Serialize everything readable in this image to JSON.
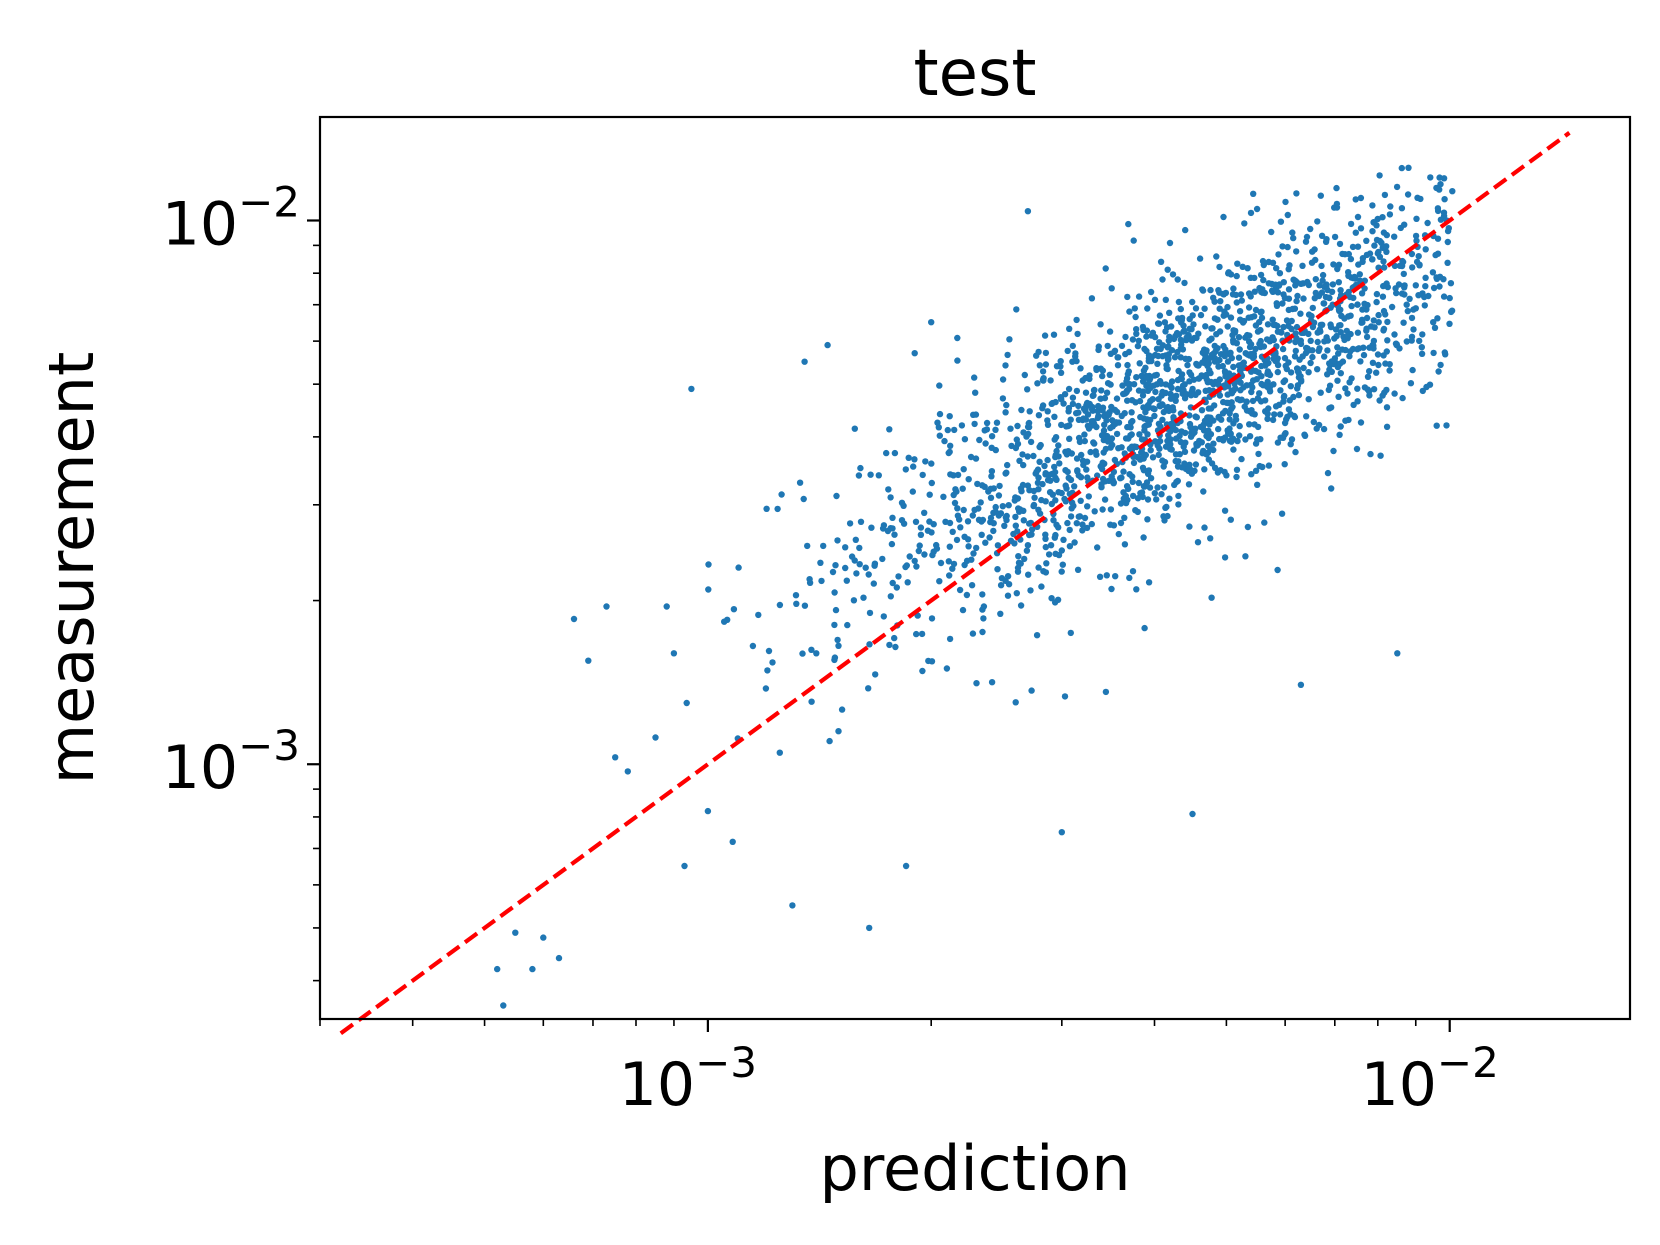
{
  "chart_data": {
    "type": "scatter",
    "title": "test",
    "xlabel": "prediction",
    "ylabel": "measurement",
    "x_scale": "log",
    "y_scale": "log",
    "xlim": [
      0.0003,
      0.0175
    ],
    "ylim": [
      0.00034,
      0.0155
    ],
    "grid": false,
    "legend": "none",
    "x_ticks": [
      {
        "value": 0.001,
        "base": "10",
        "exp": "−3"
      },
      {
        "value": 0.01,
        "base": "10",
        "exp": "−2"
      }
    ],
    "y_ticks": [
      {
        "value": 0.001,
        "base": "10",
        "exp": "−3"
      },
      {
        "value": 0.01,
        "base": "10",
        "exp": "−2"
      }
    ],
    "series": [
      {
        "color": "#1f77b4",
        "marker": "dot",
        "n_points": 2000,
        "points_sample": [
          [
            0.00052,
            0.00042
          ],
          [
            0.00053,
            0.00036
          ],
          [
            0.00055,
            0.00049
          ],
          [
            0.00058,
            0.00042
          ],
          [
            0.0006,
            0.00048
          ],
          [
            0.00063,
            0.00044
          ],
          [
            0.00066,
            0.00185
          ],
          [
            0.00069,
            0.00155
          ],
          [
            0.00073,
            0.00195
          ],
          [
            0.00075,
            0.00103
          ],
          [
            0.00078,
            0.00097
          ],
          [
            0.00085,
            0.00112
          ],
          [
            0.00088,
            0.00195
          ],
          [
            0.0009,
            0.0016
          ],
          [
            0.00093,
            0.00065
          ],
          [
            0.00095,
            0.0049
          ],
          [
            0.001,
            0.00082
          ],
          [
            0.00108,
            0.00072
          ],
          [
            0.0011,
            0.0023
          ],
          [
            0.00115,
            0.00165
          ],
          [
            0.0012,
            0.00295
          ],
          [
            0.00125,
            0.00105
          ],
          [
            0.0013,
            0.00055
          ],
          [
            0.00135,
            0.0055
          ],
          [
            0.0014,
            0.0016
          ],
          [
            0.00145,
            0.0059
          ],
          [
            0.0015,
            0.00115
          ],
          [
            0.0016,
            0.0025
          ],
          [
            0.00165,
            0.0005
          ],
          [
            0.0017,
            0.0034
          ],
          [
            0.0018,
            0.0018
          ],
          [
            0.00185,
            0.00065
          ],
          [
            0.0019,
            0.0057
          ],
          [
            0.002,
            0.0065
          ],
          [
            0.0021,
            0.0015
          ],
          [
            0.0022,
            0.0042
          ],
          [
            0.0023,
            0.0025
          ],
          [
            0.0025,
            0.0051
          ],
          [
            0.0026,
            0.0013
          ],
          [
            0.0027,
            0.0104
          ],
          [
            0.0028,
            0.0036
          ],
          [
            0.003,
            0.00075
          ],
          [
            0.0031,
            0.0055
          ],
          [
            0.0033,
            0.0042
          ],
          [
            0.0035,
            0.0021
          ],
          [
            0.0037,
            0.0068
          ],
          [
            0.004,
            0.0045
          ],
          [
            0.0042,
            0.0038
          ],
          [
            0.0044,
            0.0096
          ],
          [
            0.0045,
            0.00081
          ],
          [
            0.0047,
            0.0052
          ],
          [
            0.005,
            0.0034
          ],
          [
            0.0052,
            0.0061
          ],
          [
            0.0055,
            0.0105
          ],
          [
            0.0058,
            0.0044
          ],
          [
            0.006,
            0.0072
          ],
          [
            0.0063,
            0.0014
          ],
          [
            0.0066,
            0.0078
          ],
          [
            0.007,
            0.0055
          ],
          [
            0.0075,
            0.0038
          ],
          [
            0.008,
            0.0087
          ],
          [
            0.0085,
            0.0016
          ],
          [
            0.0088,
            0.0125
          ],
          [
            0.009,
            0.0076
          ],
          [
            0.0095,
            0.0065
          ],
          [
            0.01,
            0.0072
          ],
          [
            0.0099,
            0.0042
          ]
        ]
      },
      {
        "type": "line",
        "style": "dashed",
        "color": "#ff0000",
        "x": [
          0.00032,
          0.0145
        ],
        "y": [
          0.00032,
          0.0145
        ]
      }
    ]
  }
}
